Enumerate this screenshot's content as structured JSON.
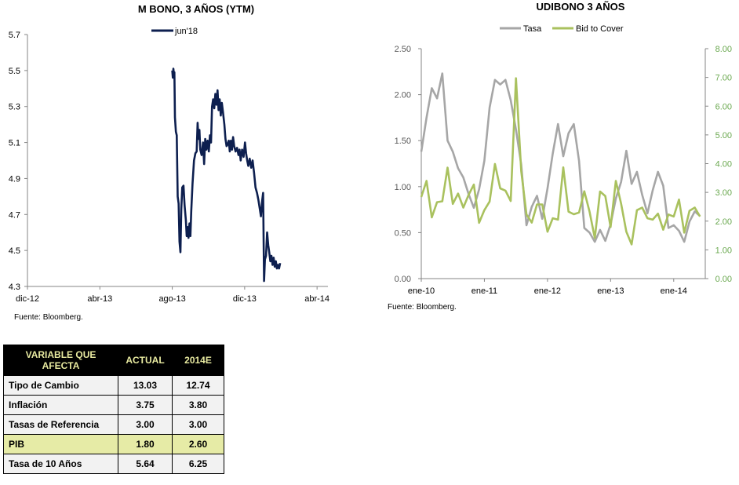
{
  "chart_data": [
    {
      "type": "line",
      "title": "M BONO, 3 AÑOS (YTM)",
      "ylim": [
        4.3,
        5.7
      ],
      "yticks": [
        "5.7",
        "5.5",
        "5.3",
        "5.1",
        "4.9",
        "4.7",
        "4.5",
        "4.3"
      ],
      "xlabels": [
        "dic-12",
        "abr-13",
        "ago-13",
        "dic-13",
        "abr-14"
      ],
      "legend": "top",
      "series": [
        {
          "name": "jun'18",
          "color": "#0d1f4f",
          "points": [
            [
              8.0,
              5.5
            ],
            [
              8.03,
              5.46
            ],
            [
              8.06,
              5.51
            ],
            [
              8.09,
              5.48
            ],
            [
              8.12,
              5.49
            ],
            [
              8.15,
              5.24
            ],
            [
              8.2,
              5.16
            ],
            [
              8.25,
              5.14
            ],
            [
              8.3,
              4.8
            ],
            [
              8.35,
              4.76
            ],
            [
              8.4,
              4.55
            ],
            [
              8.45,
              4.49
            ],
            [
              8.5,
              4.73
            ],
            [
              8.55,
              4.85
            ],
            [
              8.62,
              4.86
            ],
            [
              8.68,
              4.75
            ],
            [
              8.75,
              4.67
            ],
            [
              8.8,
              4.58
            ],
            [
              8.85,
              4.63
            ],
            [
              8.9,
              4.57
            ],
            [
              8.95,
              4.65
            ],
            [
              9.0,
              4.58
            ],
            [
              9.05,
              4.72
            ],
            [
              9.12,
              4.87
            ],
            [
              9.2,
              5.0
            ],
            [
              9.28,
              5.04
            ],
            [
              9.35,
              5.05
            ],
            [
              9.4,
              5.21
            ],
            [
              9.45,
              5.12
            ],
            [
              9.5,
              5.17
            ],
            [
              9.55,
              5.06
            ],
            [
              9.62,
              5.03
            ],
            [
              9.7,
              5.1
            ],
            [
              9.76,
              4.98
            ],
            [
              9.82,
              5.12
            ],
            [
              9.88,
              5.06
            ],
            [
              9.95,
              5.11
            ],
            [
              10.02,
              5.05
            ],
            [
              10.08,
              5.14
            ],
            [
              10.14,
              5.1
            ],
            [
              10.2,
              5.3
            ],
            [
              10.26,
              5.34
            ],
            [
              10.32,
              5.29
            ],
            [
              10.38,
              5.37
            ],
            [
              10.44,
              5.31
            ],
            [
              10.5,
              5.39
            ],
            [
              10.56,
              5.28
            ],
            [
              10.62,
              5.34
            ],
            [
              10.68,
              5.25
            ],
            [
              10.74,
              5.32
            ],
            [
              10.8,
              5.27
            ],
            [
              10.88,
              5.2
            ],
            [
              10.94,
              5.12
            ],
            [
              11.0,
              5.08
            ],
            [
              11.06,
              5.09
            ],
            [
              11.12,
              5.11
            ],
            [
              11.18,
              5.05
            ],
            [
              11.24,
              5.11
            ],
            [
              11.3,
              5.06
            ],
            [
              11.36,
              5.13
            ],
            [
              11.42,
              5.08
            ],
            [
              11.5,
              5.05
            ],
            [
              11.58,
              5.07
            ],
            [
              11.66,
              5.03
            ],
            [
              11.72,
              5.06
            ],
            [
              11.78,
              5.0
            ],
            [
              11.86,
              5.06
            ],
            [
              11.94,
              5.02
            ],
            [
              12.02,
              5.1
            ],
            [
              12.08,
              5.04
            ],
            [
              12.14,
              5.0
            ],
            [
              12.2,
              4.97
            ],
            [
              12.28,
              5.01
            ],
            [
              12.36,
              4.96
            ],
            [
              12.44,
              5.0
            ],
            [
              12.52,
              4.93
            ],
            [
              12.6,
              4.85
            ],
            [
              12.68,
              4.82
            ],
            [
              12.76,
              4.78
            ],
            [
              12.84,
              4.73
            ],
            [
              12.9,
              4.69
            ],
            [
              12.96,
              4.77
            ],
            [
              13.02,
              4.82
            ],
            [
              13.07,
              4.33
            ],
            [
              13.12,
              4.45
            ],
            [
              13.18,
              4.47
            ],
            [
              13.24,
              4.6
            ],
            [
              13.3,
              4.53
            ],
            [
              13.36,
              4.49
            ],
            [
              13.42,
              4.44
            ],
            [
              13.48,
              4.47
            ],
            [
              13.54,
              4.42
            ],
            [
              13.6,
              4.46
            ],
            [
              13.66,
              4.41
            ],
            [
              13.72,
              4.44
            ],
            [
              13.78,
              4.4
            ],
            [
              13.84,
              4.42
            ],
            [
              13.9,
              4.4
            ],
            [
              13.96,
              4.43
            ]
          ]
        }
      ]
    },
    {
      "type": "line",
      "title": "UDIBONO 3 AÑOS",
      "ylim": [
        0,
        2.5
      ],
      "ylim_right": [
        0,
        8
      ],
      "yticks": [
        "2.50",
        "2.00",
        "1.50",
        "1.00",
        "0.50",
        "0.00"
      ],
      "yticks_right": [
        "8.00",
        "7.00",
        "6.00",
        "5.00",
        "4.00",
        "3.00",
        "2.00",
        "1.00",
        "0.00"
      ],
      "xlabels": [
        "ene-10",
        "ene-11",
        "ene-12",
        "ene-13",
        "ene-14"
      ],
      "legend": "top",
      "series": [
        {
          "name": "Tasa",
          "color": "#a6a6a6",
          "axis": "left",
          "x": [
            0,
            1,
            2,
            3,
            4,
            5,
            6,
            7,
            8,
            9,
            10,
            11,
            12,
            13,
            14,
            15,
            16,
            17,
            18,
            19,
            20,
            21,
            22,
            23,
            24,
            25,
            26,
            27,
            28,
            29,
            30,
            31,
            32,
            33,
            34,
            35,
            36,
            37,
            38,
            39,
            40,
            41,
            42,
            43,
            44,
            45,
            46,
            47,
            48,
            49,
            50,
            51,
            52,
            53
          ],
          "values": [
            1.38,
            1.75,
            2.07,
            1.96,
            2.23,
            1.5,
            1.38,
            1.2,
            1.1,
            0.92,
            0.77,
            0.97,
            1.28,
            1.86,
            2.16,
            2.11,
            2.16,
            1.94,
            1.62,
            1.24,
            0.58,
            0.78,
            0.9,
            0.65,
            0.98,
            1.36,
            1.68,
            1.33,
            1.58,
            1.68,
            1.28,
            0.55,
            0.5,
            0.4,
            0.53,
            0.41,
            0.59,
            0.87,
            1.05,
            1.39,
            1.03,
            1.16,
            0.91,
            0.71,
            0.96,
            1.16,
            1.01,
            0.55,
            0.58,
            0.52,
            0.4,
            0.62,
            0.73,
            0.68
          ]
        },
        {
          "name": "Bid to Cover",
          "color": "#a9c15e",
          "axis": "right",
          "x": [
            0,
            1,
            2,
            3,
            4,
            5,
            6,
            7,
            8,
            9,
            10,
            11,
            12,
            13,
            14,
            15,
            16,
            17,
            18,
            19,
            20,
            21,
            22,
            23,
            24,
            25,
            26,
            27,
            28,
            29,
            30,
            31,
            32,
            33,
            34,
            35,
            36,
            37,
            38,
            39,
            40,
            41,
            42,
            43,
            44,
            45,
            46,
            47,
            48,
            49,
            50,
            51,
            52,
            53
          ],
          "values": [
            2.84,
            3.4,
            2.13,
            2.66,
            2.69,
            3.86,
            2.6,
            2.96,
            2.47,
            2.91,
            3.27,
            1.94,
            2.38,
            2.68,
            3.99,
            3.14,
            3.06,
            2.7,
            6.97,
            3.74,
            2.23,
            1.95,
            2.58,
            2.58,
            1.63,
            2.1,
            2.05,
            3.87,
            2.33,
            2.24,
            2.3,
            3.04,
            2.33,
            1.41,
            3.03,
            2.87,
            1.79,
            3.4,
            2.61,
            1.63,
            1.19,
            2.38,
            2.47,
            2.1,
            2.05,
            2.26,
            1.7,
            2.23,
            2.16,
            2.75,
            1.6,
            2.36,
            2.47,
            2.16
          ]
        }
      ]
    },
    {
      "type": "table",
      "columns": [
        "VARIABLE QUE AFECTA",
        "ACTUAL",
        "2014E"
      ],
      "rows": [
        [
          "Tipo de Cambio",
          "13.03",
          "12.74"
        ],
        [
          "Inflación",
          "3.75",
          "3.80"
        ],
        [
          "Tasas de Referencia",
          "3.00",
          "3.00"
        ],
        [
          "PIB",
          "1.80",
          "2.60"
        ],
        [
          "Tasa de 10 Años",
          "5.64",
          "6.25"
        ]
      ],
      "highlight_row": 3,
      "header_bg": "#000000",
      "header_color": "#e8eaa0",
      "highlight_color": "#e6eba6"
    }
  ],
  "sources": {
    "left": "Fuente: Bloomberg.",
    "right": "Fuente: Bloomberg."
  }
}
